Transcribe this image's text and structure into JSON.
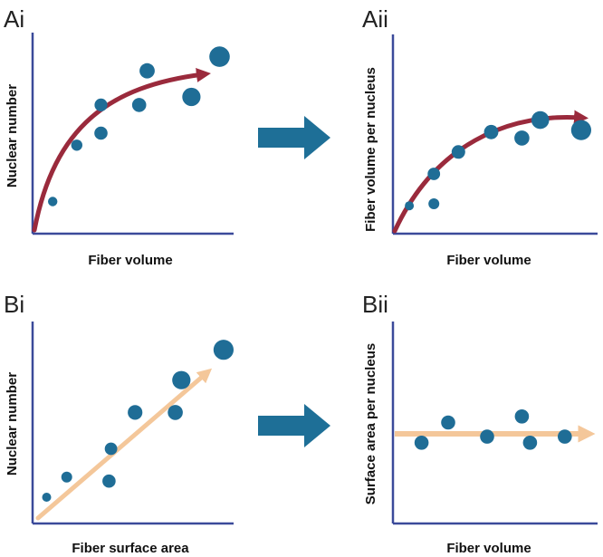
{
  "colors": {
    "axis": "#3b4a9a",
    "dot": "#1f6d96",
    "curve_arrow": "#9a2a3c",
    "linear_arrow": "#f4c79a",
    "transition_arrow": "#1e6f97"
  },
  "panels": {
    "ai": {
      "label": "Ai",
      "xlabel": "Fiber volume",
      "ylabel": "Nuclear number",
      "trend": "curve",
      "points": [
        {
          "x": 0.1,
          "y": 0.16,
          "size": 0.18
        },
        {
          "x": 0.22,
          "y": 0.44,
          "size": 0.28
        },
        {
          "x": 0.34,
          "y": 0.5,
          "size": 0.4
        },
        {
          "x": 0.34,
          "y": 0.64,
          "size": 0.38
        },
        {
          "x": 0.53,
          "y": 0.64,
          "size": 0.45
        },
        {
          "x": 0.57,
          "y": 0.81,
          "size": 0.52
        },
        {
          "x": 0.79,
          "y": 0.68,
          "size": 0.7
        },
        {
          "x": 0.93,
          "y": 0.88,
          "size": 0.82
        }
      ]
    },
    "aii": {
      "label": "Aii",
      "xlabel": "Fiber volume",
      "ylabel": "Fiber volume per nucleus",
      "trend": "curve",
      "points": [
        {
          "x": 0.08,
          "y": 0.14,
          "size": 0.16
        },
        {
          "x": 0.2,
          "y": 0.15,
          "size": 0.26
        },
        {
          "x": 0.2,
          "y": 0.3,
          "size": 0.36
        },
        {
          "x": 0.32,
          "y": 0.41,
          "size": 0.42
        },
        {
          "x": 0.48,
          "y": 0.51,
          "size": 0.46
        },
        {
          "x": 0.63,
          "y": 0.48,
          "size": 0.5
        },
        {
          "x": 0.72,
          "y": 0.57,
          "size": 0.66
        },
        {
          "x": 0.92,
          "y": 0.52,
          "size": 0.8
        }
      ]
    },
    "bi": {
      "label": "Bi",
      "xlabel": "Fiber surface area",
      "ylabel": "Nuclear number",
      "trend": "linear",
      "points": [
        {
          "x": 0.07,
          "y": 0.13,
          "size": 0.16
        },
        {
          "x": 0.17,
          "y": 0.23,
          "size": 0.26
        },
        {
          "x": 0.38,
          "y": 0.21,
          "size": 0.4
        },
        {
          "x": 0.39,
          "y": 0.37,
          "size": 0.36
        },
        {
          "x": 0.51,
          "y": 0.55,
          "size": 0.48
        },
        {
          "x": 0.71,
          "y": 0.55,
          "size": 0.5
        },
        {
          "x": 0.74,
          "y": 0.71,
          "size": 0.7
        },
        {
          "x": 0.95,
          "y": 0.86,
          "size": 0.8
        }
      ]
    },
    "bii": {
      "label": "Bii",
      "xlabel": "Fiber volume",
      "ylabel": "Surface area per nucleus",
      "trend": "flat",
      "points": [
        {
          "x": 0.14,
          "y": 0.4,
          "size": 0.45
        },
        {
          "x": 0.27,
          "y": 0.5,
          "size": 0.45
        },
        {
          "x": 0.46,
          "y": 0.43,
          "size": 0.45
        },
        {
          "x": 0.63,
          "y": 0.53,
          "size": 0.45
        },
        {
          "x": 0.67,
          "y": 0.4,
          "size": 0.45
        },
        {
          "x": 0.84,
          "y": 0.43,
          "size": 0.45
        }
      ]
    }
  }
}
